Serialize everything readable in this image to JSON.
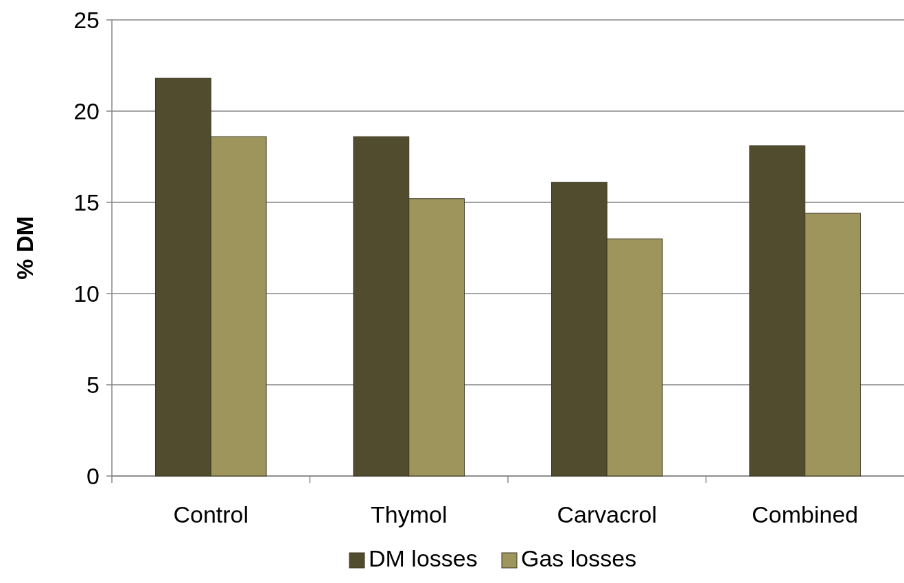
{
  "chart_data": {
    "type": "bar",
    "ylabel": "% DM",
    "categories": [
      "Control",
      "Thymol",
      "Carvacrol",
      "Combined"
    ],
    "series": [
      {
        "name": "DM losses",
        "color": "#514c2e",
        "values": [
          21.8,
          18.6,
          16.1,
          18.1
        ]
      },
      {
        "name": "Gas losses",
        "color": "#9e955d",
        "values": [
          18.6,
          15.2,
          13.0,
          14.4
        ]
      }
    ],
    "ylim": [
      0,
      25
    ],
    "yticks": [
      0,
      5,
      10,
      15,
      20,
      25
    ],
    "grid": "y",
    "legend": "bottom"
  }
}
